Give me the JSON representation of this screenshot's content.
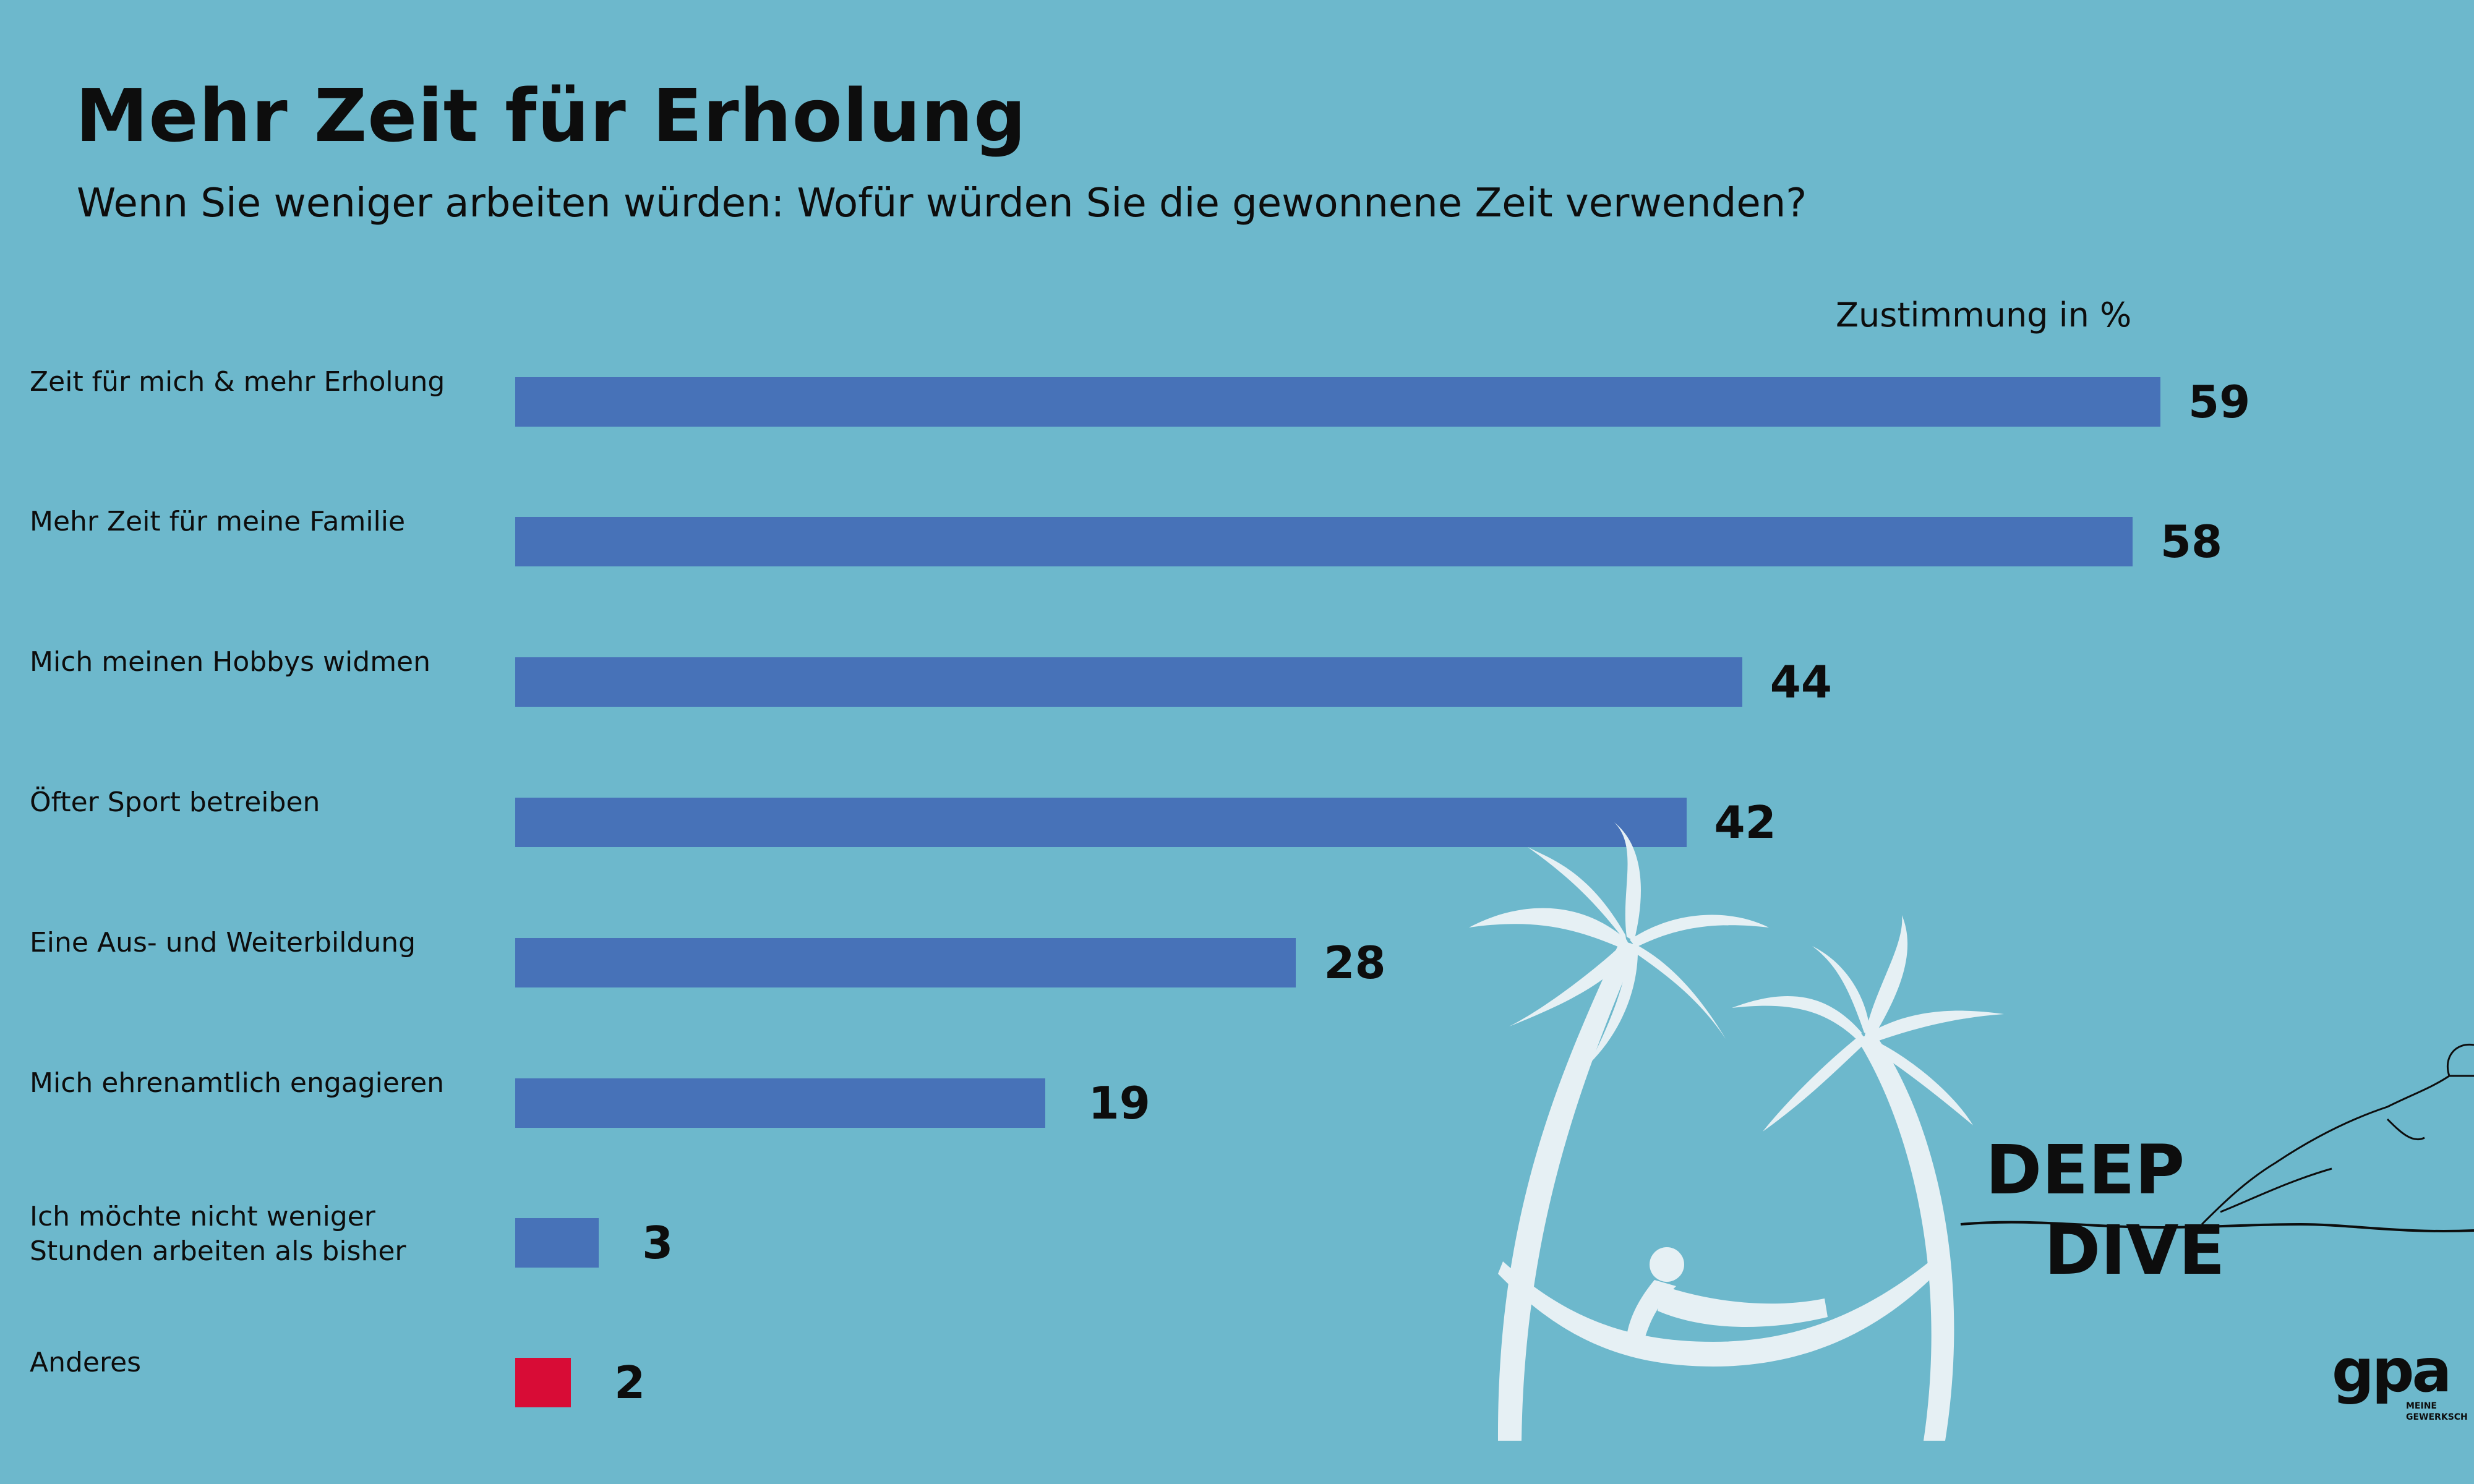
{
  "title": "Mehr Zeit für Erholung",
  "subtitle": "Wenn Sie weniger arbeiten würden: Wofür würden Sie die gewonnene Zeit verwenden?",
  "unit_label": "Zustimmung in %",
  "colors": {
    "background": "#6db8cc",
    "bar": "#4772b8",
    "bar_highlight": "#d80c36",
    "text": "#0d0d0d",
    "illustration": "#e6f0f4"
  },
  "chart_data": {
    "type": "bar",
    "orientation": "horizontal",
    "title": "Mehr Zeit für Erholung",
    "subtitle": "Wenn Sie weniger arbeiten würden: Wofür würden Sie die gewonnene Zeit verwenden?",
    "xlabel": "Zustimmung in %",
    "ylabel": "",
    "categories": [
      "Zeit für mich & mehr Erholung",
      "Mehr Zeit für meine Familie",
      "Mich meinen Hobbys widmen",
      "Öfter Sport betreiben",
      "Eine Aus- und Weiterbildung",
      "Mich ehrenamtlich engagieren",
      "Ich möchte nicht weniger\nStunden arbeiten als bisher",
      "Anderes"
    ],
    "values": [
      59,
      58,
      44,
      42,
      28,
      19,
      3,
      2
    ],
    "bar_colors": [
      "#4772b8",
      "#4772b8",
      "#4772b8",
      "#4772b8",
      "#4772b8",
      "#4772b8",
      "#4772b8",
      "#d80c36"
    ],
    "xlim": [
      0,
      59
    ],
    "grid": false,
    "legend": "none"
  },
  "branding": {
    "deep_dive_line1": "DEEP",
    "deep_dive_line2": "DIVE",
    "gpa_logo": "gpa",
    "gpa_tagline_1": "MEINE",
    "gpa_tagline_2": "GEWERKSCHAFT"
  },
  "illustration": "palm-trees-hammock-icon"
}
